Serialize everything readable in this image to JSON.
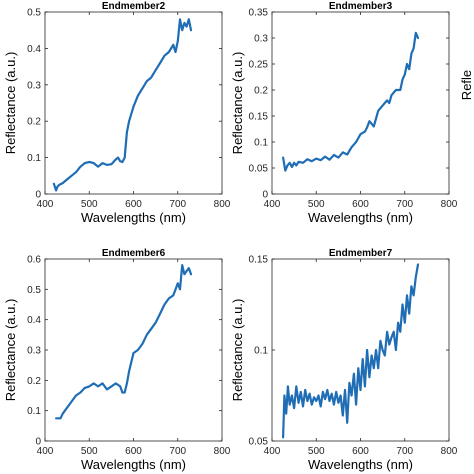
{
  "chart_data": [
    {
      "type": "line",
      "title": "Endmember2",
      "xlabel": "Wavelengths (nm)",
      "ylabel": "Reflectance (a.u.)",
      "xlim": [
        400,
        800
      ],
      "ylim": [
        0,
        0.5
      ],
      "xticks": [
        400,
        500,
        600,
        700,
        800
      ],
      "yticks": [
        0,
        0.1,
        0.2,
        0.3,
        0.4,
        0.5
      ],
      "xtick_labels": [
        "400",
        "500",
        "600",
        "700",
        "800"
      ],
      "ytick_labels": [
        "0",
        "0.1",
        "0.2",
        "0.3",
        "0.4",
        "0.5"
      ],
      "series": [
        {
          "x": [
            420,
            425,
            428,
            432,
            440,
            450,
            460,
            470,
            480,
            490,
            500,
            510,
            520,
            530,
            540,
            550,
            560,
            565,
            570,
            575,
            580,
            585,
            590,
            600,
            610,
            620,
            630,
            640,
            650,
            660,
            670,
            680,
            690,
            695,
            700,
            705,
            710,
            715,
            720,
            725,
            730
          ],
          "y": [
            0.028,
            0.01,
            0.02,
            0.025,
            0.03,
            0.04,
            0.05,
            0.06,
            0.075,
            0.085,
            0.088,
            0.085,
            0.075,
            0.085,
            0.08,
            0.082,
            0.095,
            0.1,
            0.09,
            0.088,
            0.1,
            0.17,
            0.2,
            0.24,
            0.27,
            0.29,
            0.31,
            0.32,
            0.34,
            0.36,
            0.38,
            0.39,
            0.41,
            0.39,
            0.42,
            0.48,
            0.45,
            0.47,
            0.46,
            0.48,
            0.45
          ]
        }
      ],
      "color": "#1f6db5"
    },
    {
      "type": "line",
      "title": "Endmember3",
      "xlabel": "Wavelengths (nm)",
      "ylabel": "Reflectance (a.u.)",
      "xlim": [
        400,
        800
      ],
      "ylim": [
        0,
        0.35
      ],
      "xticks": [
        400,
        500,
        600,
        700,
        800
      ],
      "yticks": [
        0,
        0.05,
        0.1,
        0.15,
        0.2,
        0.25,
        0.3,
        0.35
      ],
      "xtick_labels": [
        "400",
        "500",
        "600",
        "700",
        "800"
      ],
      "ytick_labels": [
        "0",
        "0.05",
        "0.1",
        "0.15",
        "0.2",
        "0.25",
        "0.3",
        "0.35"
      ],
      "series": [
        {
          "x": [
            425,
            430,
            435,
            440,
            445,
            450,
            455,
            460,
            470,
            480,
            490,
            500,
            510,
            520,
            530,
            540,
            550,
            560,
            570,
            580,
            590,
            600,
            610,
            615,
            620,
            630,
            640,
            650,
            660,
            665,
            670,
            680,
            690,
            695,
            700,
            705,
            710,
            715,
            720,
            725,
            730
          ],
          "y": [
            0.07,
            0.045,
            0.055,
            0.06,
            0.052,
            0.06,
            0.055,
            0.062,
            0.06,
            0.067,
            0.063,
            0.068,
            0.065,
            0.072,
            0.066,
            0.075,
            0.07,
            0.08,
            0.076,
            0.09,
            0.1,
            0.115,
            0.12,
            0.128,
            0.14,
            0.13,
            0.16,
            0.17,
            0.18,
            0.175,
            0.19,
            0.2,
            0.2,
            0.22,
            0.23,
            0.25,
            0.24,
            0.27,
            0.28,
            0.31,
            0.3
          ]
        }
      ],
      "color": "#1f6db5"
    },
    {
      "type": "line",
      "title": "Endmember6",
      "xlabel": "Wavelengths (nm)",
      "ylabel": "Reflectance (a.u.)",
      "xlim": [
        400,
        800
      ],
      "ylim": [
        0,
        0.6
      ],
      "xticks": [
        400,
        500,
        600,
        700,
        800
      ],
      "yticks": [
        0,
        0.1,
        0.2,
        0.3,
        0.4,
        0.5,
        0.6
      ],
      "xtick_labels": [
        "400",
        "500",
        "600",
        "700",
        "800"
      ],
      "ytick_labels": [
        "0",
        "0.1",
        "0.2",
        "0.3",
        "0.4",
        "0.5",
        "0.6"
      ],
      "series": [
        {
          "x": [
            425,
            435,
            440,
            450,
            460,
            470,
            480,
            490,
            500,
            510,
            520,
            530,
            540,
            550,
            560,
            570,
            575,
            580,
            585,
            590,
            600,
            610,
            620,
            630,
            640,
            650,
            660,
            670,
            680,
            690,
            700,
            705,
            710,
            715,
            720,
            725,
            730
          ],
          "y": [
            0.075,
            0.075,
            0.09,
            0.11,
            0.13,
            0.15,
            0.16,
            0.175,
            0.18,
            0.19,
            0.18,
            0.19,
            0.17,
            0.18,
            0.19,
            0.18,
            0.16,
            0.16,
            0.19,
            0.23,
            0.29,
            0.3,
            0.32,
            0.35,
            0.37,
            0.39,
            0.42,
            0.45,
            0.47,
            0.48,
            0.52,
            0.5,
            0.58,
            0.55,
            0.56,
            0.57,
            0.55
          ]
        }
      ],
      "color": "#1f6db5"
    },
    {
      "type": "line",
      "title": "Endmember7",
      "xlabel": "Wavelengths (nm)",
      "ylabel": "Reflectance (a.u.)",
      "xlim": [
        400,
        800
      ],
      "ylim": [
        0.05,
        0.15
      ],
      "xticks": [
        400,
        500,
        600,
        700,
        800
      ],
      "yticks": [
        0.05,
        0.1,
        0.15
      ],
      "xtick_labels": [
        "400",
        "500",
        "600",
        "700",
        "800"
      ],
      "ytick_labels": [
        "0.05",
        "0.1",
        "0.15"
      ],
      "series": [
        {
          "x": [
            425,
            428,
            432,
            436,
            440,
            445,
            450,
            455,
            460,
            465,
            470,
            475,
            480,
            485,
            490,
            495,
            500,
            505,
            510,
            515,
            520,
            525,
            530,
            535,
            540,
            545,
            550,
            555,
            560,
            565,
            570,
            575,
            580,
            585,
            590,
            595,
            600,
            605,
            610,
            615,
            620,
            625,
            630,
            635,
            640,
            645,
            650,
            655,
            660,
            665,
            670,
            675,
            680,
            685,
            690,
            695,
            700,
            705,
            710,
            715,
            720,
            725,
            730
          ],
          "y": [
            0.052,
            0.075,
            0.065,
            0.08,
            0.07,
            0.075,
            0.068,
            0.08,
            0.071,
            0.077,
            0.069,
            0.078,
            0.072,
            0.076,
            0.07,
            0.074,
            0.072,
            0.075,
            0.069,
            0.077,
            0.073,
            0.078,
            0.072,
            0.076,
            0.07,
            0.077,
            0.071,
            0.075,
            0.064,
            0.078,
            0.06,
            0.082,
            0.075,
            0.087,
            0.07,
            0.09,
            0.078,
            0.095,
            0.08,
            0.1,
            0.085,
            0.097,
            0.09,
            0.1,
            0.09,
            0.105,
            0.1,
            0.097,
            0.11,
            0.103,
            0.107,
            0.11,
            0.1,
            0.115,
            0.11,
            0.125,
            0.115,
            0.13,
            0.12,
            0.135,
            0.13,
            0.14,
            0.147
          ]
        }
      ],
      "color": "#1f6db5"
    }
  ],
  "cropped_label": "Refle"
}
